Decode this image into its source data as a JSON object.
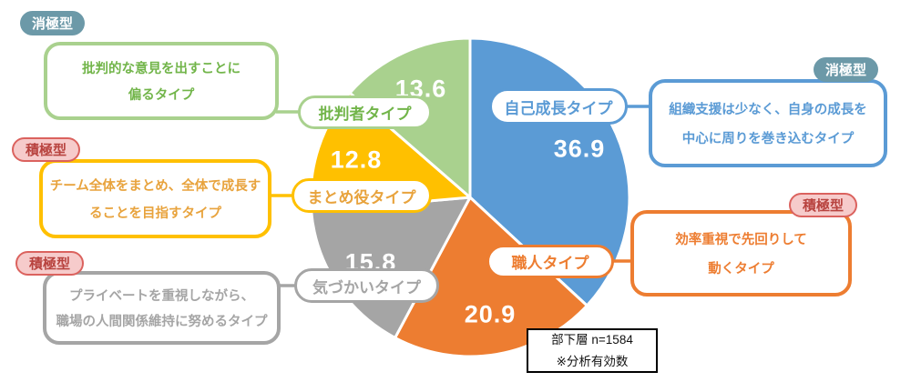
{
  "palette": {
    "green_text": "#72B54A",
    "yellow_text": "#E8A33D",
    "badge_passive_bg": "#6C99A8",
    "badge_passive_text": "#FFFFFF",
    "badge_active_bg": "#F6CBCB",
    "badge_active_border": "#DB625E",
    "badge_active_text": "#B8433F",
    "note_border": "#000000"
  },
  "chart_data": {
    "type": "pie",
    "title": "",
    "categories": [
      "自己成長タイプ",
      "職人タイプ",
      "気づかいタイプ",
      "まとめ役タイプ",
      "批判者タイプ"
    ],
    "values": [
      36.9,
      20.9,
      15.8,
      12.8,
      13.6
    ],
    "colors": [
      "#5B9BD5",
      "#ED7D31",
      "#A5A5A5",
      "#FFC000",
      "#A9D18E"
    ],
    "start_angle_deg": 0,
    "direction": "clockwise",
    "slice_label_color": "#FFFFFF",
    "annotation": {
      "line1": "部下層 n=1584",
      "line2": "※分析有効数"
    }
  },
  "badges": {
    "top_left": "消極型",
    "mid_left": "積極型",
    "bottom_left": "積極型",
    "top_right": "消極型",
    "right": "積極型"
  },
  "callouts": {
    "critic": {
      "line1": "批判的な意見を出すことに",
      "line2": "偏るタイプ"
    },
    "coordinator": {
      "line1": "チーム全体をまとめ、全体で成長す",
      "line2": "ることを目指すタイプ"
    },
    "considerate": {
      "line1": "プライベートを重視しながら、",
      "line2": "職場の人間関係維持に努めるタイプ"
    },
    "self_growth": {
      "line1": "組織支援は少なく、自身の成長を",
      "line2": "中心に周りを巻き込むタイプ"
    },
    "craftsman": {
      "line1": "効率重視で先回りして",
      "line2": "動くタイプ"
    }
  }
}
